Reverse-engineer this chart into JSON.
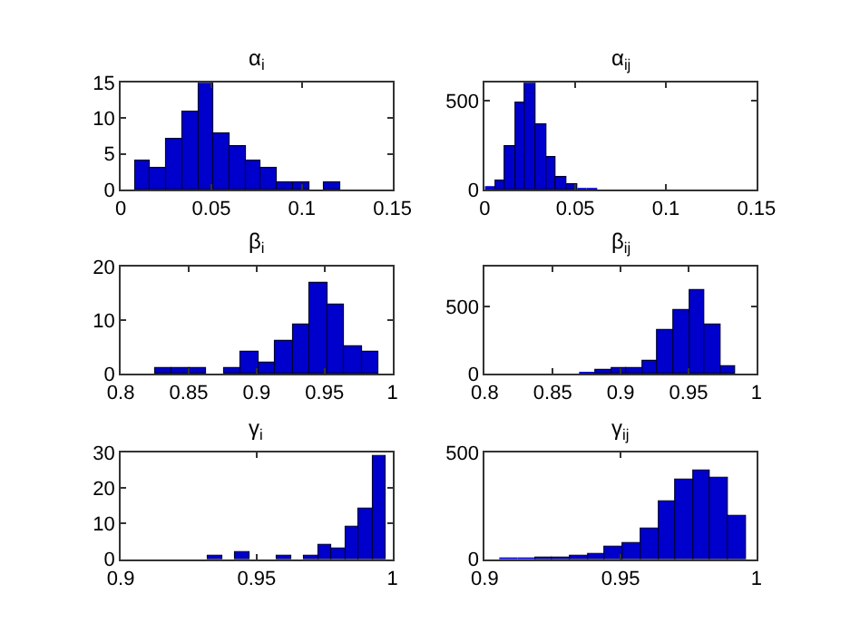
{
  "chart_data": [
    {
      "type": "histogram",
      "title": "α$_{i}$",
      "color": "#0000cc",
      "grid": false,
      "xlim": [
        0,
        0.15
      ],
      "xticks": [
        0,
        0.05,
        0.1,
        0.15
      ],
      "ylim": [
        0,
        15
      ],
      "yticks": [
        0,
        5,
        10,
        15
      ],
      "bins": [
        0.0077,
        0.0164,
        0.0252,
        0.0339,
        0.0426,
        0.0514,
        0.0601,
        0.0688,
        0.0775,
        0.0863,
        0.095,
        0.1037,
        0.1125,
        0.1212
      ],
      "values": [
        4,
        3,
        7,
        11,
        15,
        8,
        6,
        4,
        3,
        1,
        1,
        0,
        1
      ]
    },
    {
      "type": "histogram",
      "title": "α$_{ij}$",
      "color": "#0000cc",
      "grid": false,
      "xlim": [
        0,
        0.15
      ],
      "xticks": [
        0,
        0.05,
        0.1,
        0.15
      ],
      "ylim": [
        0,
        600
      ],
      "yticks": [
        0,
        500
      ],
      "bins": [
        0,
        0.0056,
        0.0113,
        0.0169,
        0.0225,
        0.0282,
        0.0338,
        0.0394,
        0.0451,
        0.0507,
        0.0563,
        0.062
      ],
      "values": [
        10,
        50,
        240,
        490,
        600,
        370,
        180,
        70,
        25,
        5,
        5
      ]
    },
    {
      "type": "histogram",
      "title": "β$_{i}$",
      "color": "#0000cc",
      "grid": false,
      "xlim": [
        0.8,
        1
      ],
      "xticks": [
        0.8,
        0.85,
        0.9,
        0.95,
        1
      ],
      "ylim": [
        0,
        20
      ],
      "yticks": [
        0,
        10,
        20
      ],
      "bins": [
        0.8248,
        0.8375,
        0.8502,
        0.863,
        0.8757,
        0.8884,
        0.9011,
        0.9138,
        0.9266,
        0.9393,
        0.952,
        0.9647,
        0.9774,
        0.9901
      ],
      "values": [
        1,
        1,
        1,
        0,
        1,
        4,
        2,
        6,
        9,
        17,
        13,
        5,
        4
      ]
    },
    {
      "type": "histogram",
      "title": "β$_{ij}$",
      "color": "#0000cc",
      "grid": false,
      "xlim": [
        0.8,
        1
      ],
      "xticks": [
        0.8,
        0.85,
        0.9,
        0.95,
        1
      ],
      "ylim": [
        0,
        800
      ],
      "yticks": [
        0,
        500
      ],
      "bins": [
        0.8699,
        0.8814,
        0.8929,
        0.9044,
        0.9159,
        0.9274,
        0.9389,
        0.9504,
        0.9619,
        0.9734,
        0.9849
      ],
      "values": [
        10,
        20,
        35,
        35,
        100,
        320,
        470,
        620,
        360,
        60
      ]
    },
    {
      "type": "histogram",
      "title": "γ$_{i}$",
      "color": "#0000cc",
      "grid": false,
      "xlim": [
        0.9,
        1
      ],
      "xticks": [
        0.9,
        0.95,
        1
      ],
      "ylim": [
        0,
        30
      ],
      "yticks": [
        0,
        10,
        20,
        30
      ],
      "bins": [
        0.9323,
        0.9373,
        0.9424,
        0.9474,
        0.9525,
        0.9575,
        0.9625,
        0.9676,
        0.9726,
        0.9777,
        0.9827,
        0.9877,
        0.9928,
        0.9978
      ],
      "values": [
        1,
        0,
        2,
        0,
        0,
        1,
        0,
        1,
        4,
        3,
        9,
        14,
        29
      ]
    },
    {
      "type": "histogram",
      "title": "γ$_{ij}$",
      "color": "#0000cc",
      "grid": false,
      "xlim": [
        0.9,
        1
      ],
      "xticks": [
        0.9,
        0.95,
        1
      ],
      "ylim": [
        0,
        500
      ],
      "yticks": [
        0,
        500
      ],
      "bins": [
        0.9056,
        0.9121,
        0.9185,
        0.925,
        0.9315,
        0.9379,
        0.9444,
        0.9508,
        0.9573,
        0.9638,
        0.9702,
        0.9767,
        0.9831,
        0.9896,
        0.9961
      ],
      "values": [
        5,
        5,
        10,
        10,
        15,
        25,
        55,
        75,
        145,
        275,
        370,
        415,
        380,
        205
      ]
    }
  ]
}
